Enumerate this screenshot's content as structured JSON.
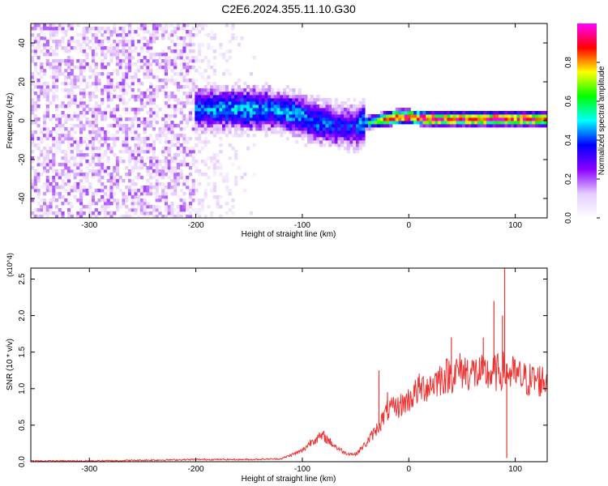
{
  "title": "C2E6.2024.355.11.10.G30",
  "chart_data": [
    {
      "type": "heatmap",
      "xlabel": "Height of straight line (km)",
      "ylabel": "Frequency (Hz)",
      "xlim": [
        -355,
        130
      ],
      "ylim": [
        -50,
        50
      ],
      "x_ticks": [
        -300,
        -200,
        -100,
        0,
        100
      ],
      "y_ticks": [
        40,
        20,
        0,
        -20,
        -40
      ],
      "colorbar": {
        "label": "Normalized spectral amplitude",
        "range": [
          0,
          1
        ],
        "ticks": [
          "0.0",
          "0.2",
          "0.4",
          "0.6",
          "0.8"
        ],
        "colors": [
          "#ffffff",
          "#e6ccff",
          "#8800ff",
          "#0000ff",
          "#00ffff",
          "#00ff00",
          "#ffff00",
          "#ff0000",
          "#ff00ff"
        ]
      },
      "ridge": {
        "x": [
          -195,
          -170,
          -150,
          -130,
          -110,
          -95,
          -80,
          -65,
          -50,
          -40,
          -30,
          -20,
          -10,
          0,
          20,
          40,
          60,
          80,
          100,
          130
        ],
        "freq": [
          6,
          6,
          6,
          6,
          4,
          1,
          -1,
          -3,
          -3,
          -1,
          0,
          1,
          2,
          2,
          1,
          1,
          1,
          1,
          1,
          1
        ],
        "amp": [
          0.45,
          0.5,
          0.5,
          0.45,
          0.5,
          0.45,
          0.45,
          0.4,
          0.4,
          0.55,
          0.7,
          0.9,
          1,
          1,
          1,
          0.95,
          1,
          1,
          0.95,
          0.95
        ]
      },
      "noise_region_x": [
        -355,
        -140
      ],
      "grid": false
    },
    {
      "type": "line",
      "xlabel": "Height of straight line (km)",
      "ylabel": "SNR (10 * v/v)",
      "y_multiplier": "(x10^4)",
      "xlim": [
        -355,
        130
      ],
      "ylim": [
        0,
        2.65
      ],
      "x_ticks": [
        -300,
        -200,
        -100,
        0,
        100
      ],
      "y_ticks": [
        "0.0",
        "0.5",
        "1.0",
        "1.5",
        "2.0",
        "2.5"
      ],
      "color": "#ee3333",
      "series": [
        {
          "x": [
            -355,
            -300,
            -250,
            -200,
            -150,
            -120,
            -100,
            -90,
            -80,
            -70,
            -60,
            -50,
            -40,
            -30,
            -20,
            -10,
            0,
            10,
            20,
            30,
            40,
            50,
            60,
            70,
            80,
            90,
            100,
            110,
            120,
            130
          ],
          "y": [
            0.01,
            0.01,
            0.02,
            0.03,
            0.03,
            0.04,
            0.15,
            0.3,
            0.35,
            0.22,
            0.12,
            0.1,
            0.25,
            0.45,
            0.7,
            0.75,
            0.85,
            1.0,
            1.05,
            1.15,
            1.2,
            1.25,
            1.22,
            1.2,
            1.2,
            1.25,
            1.18,
            1.12,
            1.12,
            1.1
          ]
        }
      ],
      "spikes": [
        {
          "x": 80,
          "y": 2.2
        },
        {
          "x": 88,
          "y": 2.0
        },
        {
          "x": 90,
          "y": 2.65
        },
        {
          "x": 92,
          "y": 0.05
        },
        {
          "x": 70,
          "y": 1.7
        },
        {
          "x": 40,
          "y": 1.7
        },
        {
          "x": -28,
          "y": 1.25
        },
        {
          "x": -20,
          "y": 0.95
        }
      ],
      "grid": false
    }
  ]
}
